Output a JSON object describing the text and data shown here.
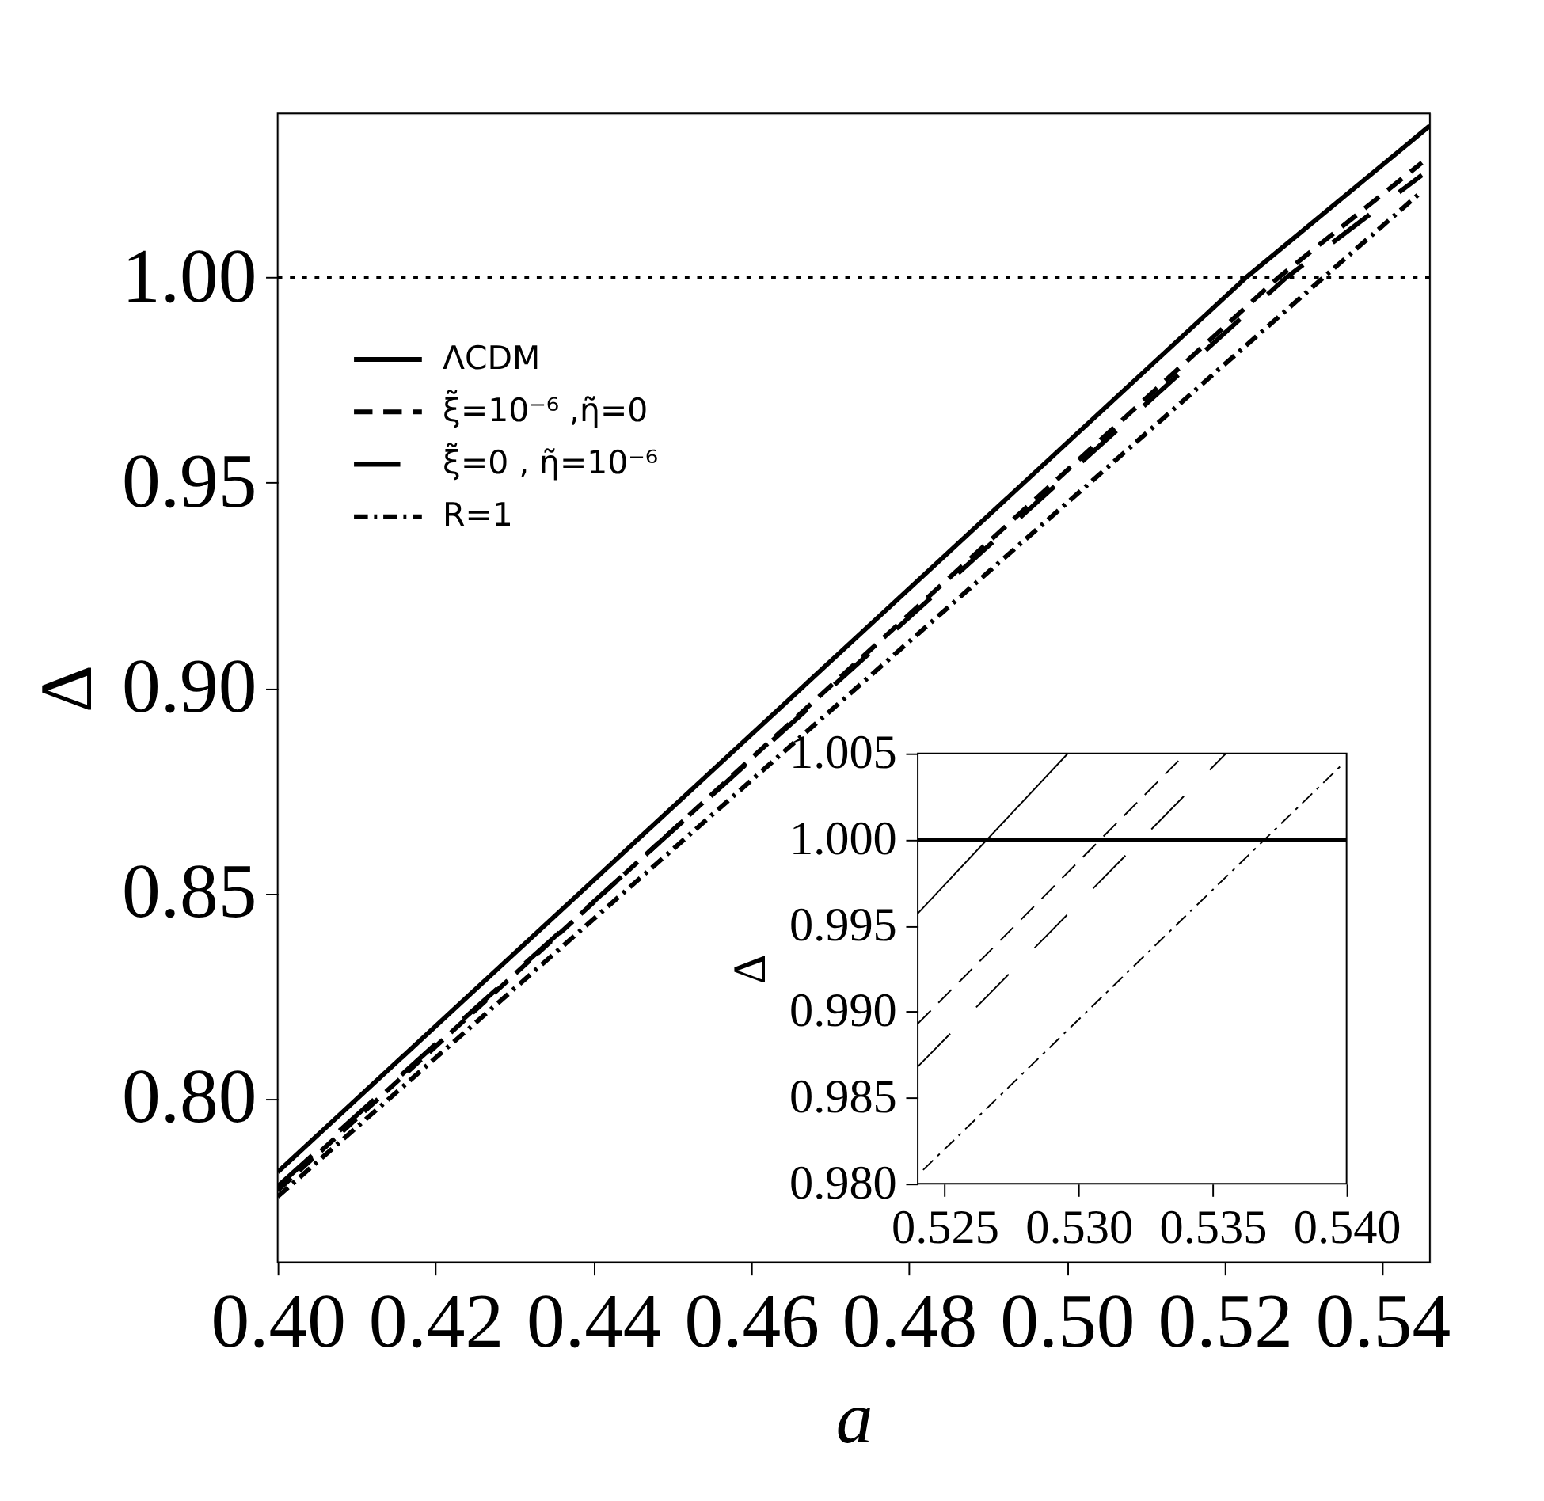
{
  "chart_data": [
    {
      "type": "line",
      "xlabel": "a",
      "ylabel": "Δ",
      "xlim": [
        0.4,
        0.546
      ],
      "ylim": [
        0.76,
        1.04
      ],
      "xticks": [
        {
          "value": 0.4,
          "label": "0.40"
        },
        {
          "value": 0.42,
          "label": "0.42"
        },
        {
          "value": 0.44,
          "label": "0.44"
        },
        {
          "value": 0.46,
          "label": "0.46"
        },
        {
          "value": 0.48,
          "label": "0.48"
        },
        {
          "value": 0.5,
          "label": "0.50"
        },
        {
          "value": 0.52,
          "label": "0.52"
        },
        {
          "value": 0.54,
          "label": "0.54"
        }
      ],
      "yticks": [
        {
          "value": 0.8,
          "label": "0.80"
        },
        {
          "value": 0.85,
          "label": "0.85"
        },
        {
          "value": 0.9,
          "label": "0.90"
        },
        {
          "value": 0.95,
          "label": "0.95"
        },
        {
          "value": 1.0,
          "label": "1.00"
        }
      ],
      "grid": false,
      "legend": "top left",
      "ref_lines": [
        {
          "axis": "y",
          "value": 1.0,
          "line_style": "dotted"
        }
      ],
      "series": [
        {
          "name": "ΛCDM",
          "color": "#000000",
          "line_style": "solid",
          "x": [
            0.4,
            0.5227,
            0.546
          ],
          "values": [
            0.782,
            1.0,
            1.037
          ]
        },
        {
          "name": "ξ̃=10⁻⁶ ,η̃=0",
          "color": "#000000",
          "line_style": "dashed",
          "x": [
            0.4,
            0.5268,
            0.545
          ],
          "values": [
            0.7775,
            1.0,
            1.028
          ]
        },
        {
          "name": "ξ̃=0 , η̃=10⁻⁶",
          "color": "#000000",
          "line_style": "longdash",
          "x": [
            0.4,
            0.5278,
            0.545
          ],
          "values": [
            0.7785,
            1.0,
            1.025
          ]
        },
        {
          "name": "R=1",
          "color": "#000000",
          "line_style": "dashdot",
          "x": [
            0.4,
            0.5325,
            0.545
          ],
          "values": [
            0.776,
            1.0,
            1.021
          ]
        }
      ]
    },
    {
      "type": "line",
      "ylabel": "Δ",
      "xlim": [
        0.524,
        0.54
      ],
      "ylim": [
        0.98,
        1.005
      ],
      "xticks": [
        {
          "value": 0.525,
          "label": "0.525"
        },
        {
          "value": 0.53,
          "label": "0.530"
        },
        {
          "value": 0.535,
          "label": "0.535"
        },
        {
          "value": 0.54,
          "label": "0.540"
        }
      ],
      "yticks": [
        {
          "value": 0.98,
          "label": "0.980"
        },
        {
          "value": 0.985,
          "label": "0.985"
        },
        {
          "value": 0.99,
          "label": "0.990"
        },
        {
          "value": 0.995,
          "label": "0.995"
        },
        {
          "value": 1.0,
          "label": "1.000"
        },
        {
          "value": 1.005,
          "label": "1.005"
        }
      ],
      "grid": false,
      "ref_lines": [
        {
          "axis": "y",
          "value": 1.0,
          "line_style": "solid"
        }
      ],
      "series": [
        {
          "color": "#000000",
          "line_style": "solid",
          "x": [
            0.524,
            0.5296
          ],
          "values": [
            0.9957,
            1.005
          ]
        },
        {
          "color": "#000000",
          "line_style": "dashed",
          "x": [
            0.524,
            0.534
          ],
          "values": [
            0.9893,
            1.005
          ]
        },
        {
          "color": "#000000",
          "line_style": "longdash",
          "x": [
            0.524,
            0.5355
          ],
          "values": [
            0.9868,
            1.005
          ]
        },
        {
          "color": "#000000",
          "line_style": "dashdot",
          "x": [
            0.5242,
            0.5398
          ],
          "values": [
            0.9808,
            1.0043
          ]
        }
      ]
    }
  ]
}
